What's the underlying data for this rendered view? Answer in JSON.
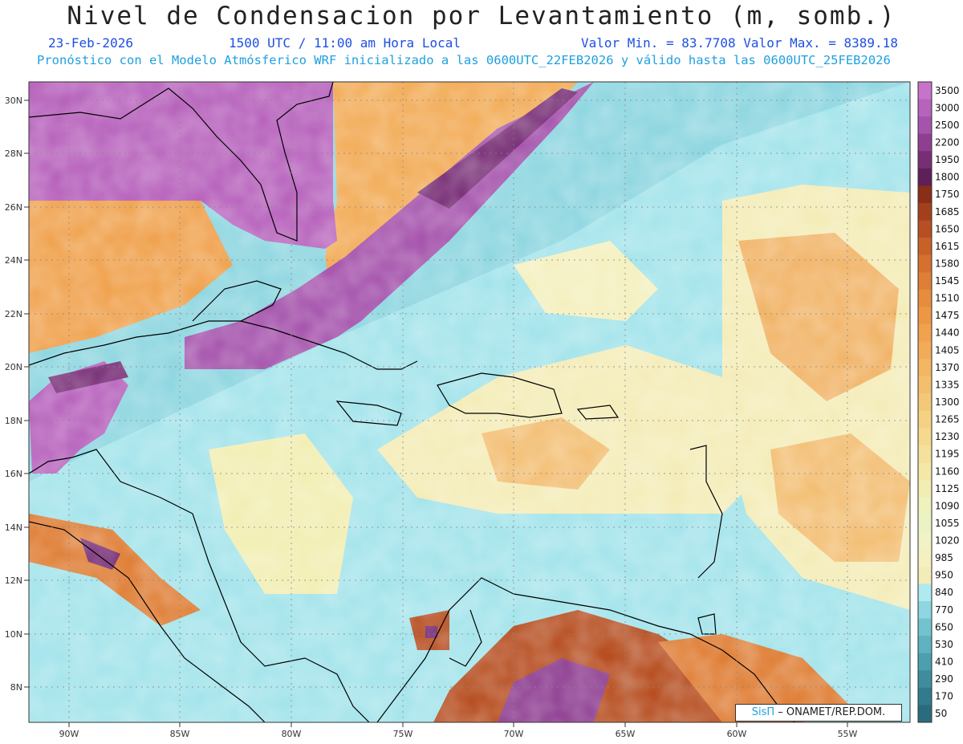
{
  "header": {
    "title": "Nivel de Condensacion por Levantamiento (m, somb.)",
    "date": "23-Feb-2026",
    "time": "1500 UTC / 11:00 am Hora Local",
    "min_max": "Valor Min. = 83.7708  Valor Max. = 8389.18",
    "model_info": "Pronóstico con el Modelo Atmósferico WRF inicializado a las 0600UTC_22FEB2026 y válido hasta las  0600UTC_25FEB2026"
  },
  "credit": {
    "sis": "SisΠ",
    "org": "– ONAMET/REP.DOM."
  },
  "map": {
    "lon_labels": [
      "90W",
      "85W",
      "80W",
      "75W",
      "70W",
      "65W",
      "60W",
      "55W"
    ],
    "lat_labels": [
      "30N",
      "28N",
      "26N",
      "24N",
      "22N",
      "20N",
      "18N",
      "16N",
      "14N",
      "12N",
      "10N",
      "8N"
    ]
  },
  "colorbar": {
    "levels": [
      "3500",
      "3000",
      "2500",
      "2200",
      "1950",
      "1800",
      "1750",
      "1685",
      "1650",
      "1615",
      "1580",
      "1545",
      "1510",
      "1475",
      "1440",
      "1405",
      "1370",
      "1335",
      "1300",
      "1265",
      "1230",
      "1195",
      "1160",
      "1125",
      "1090",
      "1055",
      "1020",
      "985",
      "950",
      "840",
      "770",
      "650",
      "530",
      "410",
      "290",
      "170",
      "50"
    ],
    "colors": [
      "#c772cb",
      "#b762bc",
      "#a553ac",
      "#8f3f92",
      "#772e75",
      "#5f1f58",
      "#8a2e17",
      "#a3401c",
      "#b74f22",
      "#c86128",
      "#d5702f",
      "#df7e36",
      "#e78b3d",
      "#ed9745",
      "#f0a24e",
      "#f2ac58",
      "#f3b662",
      "#f4bf6d",
      "#f4c879",
      "#f5d184",
      "#f5d98f",
      "#f5e19b",
      "#f4e8a7",
      "#f2eeb3",
      "#eef2bc",
      "#e9f3c4",
      "#f1f3c7",
      "#f4f0bf",
      "#f4ecb8",
      "#aeeaf0",
      "#8ed6e0",
      "#73c3cf",
      "#5fb2bf",
      "#4c9fae",
      "#3d8d9d",
      "#317b8c",
      "#2a6c7d"
    ]
  }
}
